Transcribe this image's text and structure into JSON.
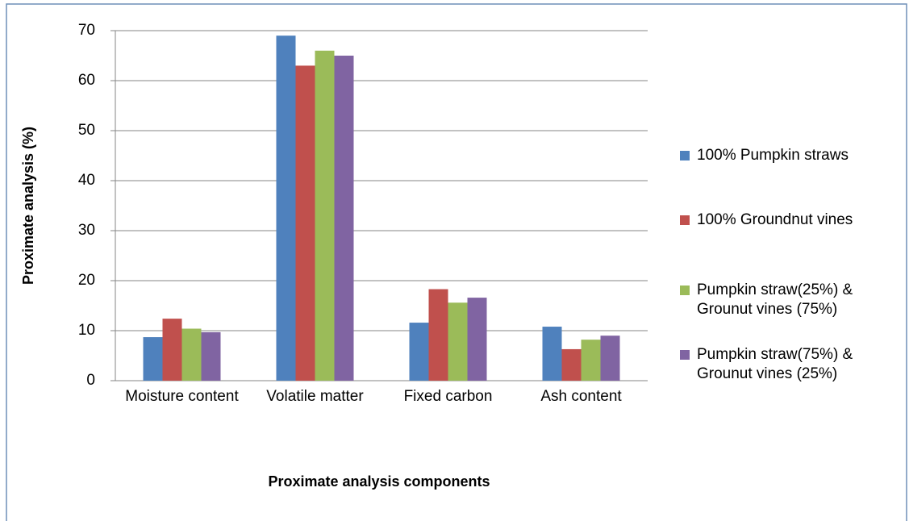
{
  "chart_data": {
    "type": "bar",
    "x_label": "Proximate analysis components",
    "y_label": "Proximate analysis (%)",
    "categories": [
      "Moisture content",
      "Volatile matter",
      "Fixed carbon",
      "Ash content"
    ],
    "series": [
      {
        "name": "100% Pumpkin straws",
        "color": "#4f81bd",
        "values": [
          8.7,
          69,
          11.6,
          10.8
        ]
      },
      {
        "name": "100% Groundnut vines",
        "color": "#c0504d",
        "values": [
          12.4,
          63,
          18.3,
          6.3
        ]
      },
      {
        "name": "Pumpkin straw(25%) & Grounut vines (75%)",
        "color": "#9bbb59",
        "values": [
          10.4,
          66,
          15.6,
          8.2
        ]
      },
      {
        "name": "Pumpkin straw(75%) & Grounut vines (25%)",
        "color": "#8064a2",
        "values": [
          9.7,
          65,
          16.6,
          9.0
        ]
      }
    ],
    "ylim": [
      0,
      70
    ],
    "yticks": [
      0,
      10,
      20,
      30,
      40,
      50,
      60,
      70
    ],
    "grid": true,
    "legend": "right"
  }
}
